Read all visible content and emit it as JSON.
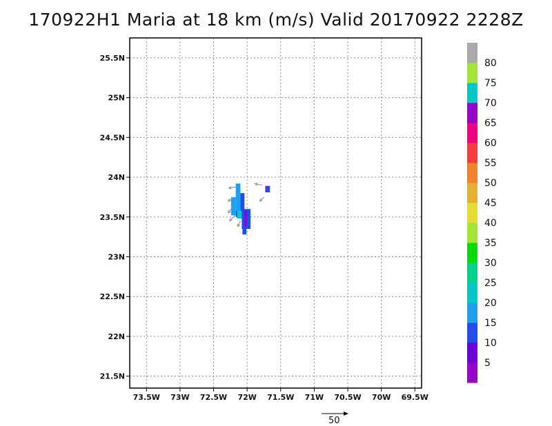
{
  "title": "170922H1 Maria at 18 km (m/s) Valid 20170922 2228Z",
  "map": {
    "lon_range": [
      -73.75,
      -69.4
    ],
    "lat_range": [
      21.35,
      25.75
    ],
    "lon_ticks": [
      {
        "value": -73.5,
        "label": "73.5W"
      },
      {
        "value": -73.0,
        "label": "73W"
      },
      {
        "value": -72.5,
        "label": "72.5W"
      },
      {
        "value": -72.0,
        "label": "72W"
      },
      {
        "value": -71.5,
        "label": "71.5W"
      },
      {
        "value": -71.0,
        "label": "71W"
      },
      {
        "value": -70.5,
        "label": "70.5W"
      },
      {
        "value": -70.0,
        "label": "70W"
      },
      {
        "value": -69.5,
        "label": "69.5W"
      }
    ],
    "lat_ticks": [
      {
        "value": 21.5,
        "label": "21.5N"
      },
      {
        "value": 22.0,
        "label": "22N"
      },
      {
        "value": 22.5,
        "label": "22.5N"
      },
      {
        "value": 23.0,
        "label": "23N"
      },
      {
        "value": 23.5,
        "label": "23.5N"
      },
      {
        "value": 24.0,
        "label": "24N"
      },
      {
        "value": 24.5,
        "label": "24.5N"
      },
      {
        "value": 25.0,
        "label": "25N"
      },
      {
        "value": 25.5,
        "label": "25.5N"
      }
    ],
    "grid": "dotted",
    "wind_cells": [
      {
        "lon0": -72.17,
        "lon1": -72.1,
        "lat0": 23.58,
        "lat1": 23.92,
        "color": "#1ea0f0"
      },
      {
        "lon0": -72.17,
        "lon1": -72.1,
        "lat0": 23.5,
        "lat1": 23.58,
        "color": "#1e4ef0"
      },
      {
        "lon0": -72.24,
        "lon1": -72.17,
        "lat0": 23.52,
        "lat1": 23.75,
        "color": "#1ea0f0"
      },
      {
        "lon0": -72.1,
        "lon1": -72.04,
        "lat0": 23.55,
        "lat1": 23.8,
        "color": "#1e4ef0"
      },
      {
        "lon0": -72.15,
        "lon1": -72.05,
        "lat0": 23.48,
        "lat1": 23.58,
        "color": "#00c8c8"
      },
      {
        "lon0": -72.08,
        "lon1": -71.95,
        "lat0": 23.35,
        "lat1": 23.6,
        "color": "#1e4ef0"
      },
      {
        "lon0": -72.07,
        "lon1": -72.01,
        "lat0": 23.28,
        "lat1": 23.4,
        "color": "#1e4ef0"
      },
      {
        "lon0": -72.04,
        "lon1": -72.0,
        "lat0": 23.38,
        "lat1": 23.58,
        "color": "#9600c8"
      },
      {
        "lon0": -71.71,
        "lon1": -71.66,
        "lat0": 23.81,
        "lat1": 23.89,
        "color": "#1e4ef0"
      },
      {
        "lon0": -71.73,
        "lon1": -71.71,
        "lat0": 23.81,
        "lat1": 23.89,
        "color": "#9600c8"
      }
    ],
    "wind_vectors": [
      {
        "lon": -72.15,
        "lat": 23.88,
        "u": -12,
        "v": -2
      },
      {
        "lon": -72.2,
        "lat": 23.75,
        "u": -8,
        "v": -6
      },
      {
        "lon": -72.22,
        "lat": 23.62,
        "u": -6,
        "v": -8
      },
      {
        "lon": -72.18,
        "lat": 23.52,
        "u": -8,
        "v": -8
      },
      {
        "lon": -72.1,
        "lat": 23.45,
        "u": -4,
        "v": -8
      },
      {
        "lon": -71.78,
        "lat": 23.9,
        "u": -10,
        "v": 2
      },
      {
        "lon": -71.75,
        "lat": 23.75,
        "u": -6,
        "v": -6
      }
    ]
  },
  "colorbar": {
    "colors": [
      "#9600c8",
      "#6e00dc",
      "#1e4ef0",
      "#1ea0f0",
      "#00c8c8",
      "#00d28c",
      "#00dc00",
      "#a0e632",
      "#e6dc32",
      "#e6af2d",
      "#f08228",
      "#fa3c3c",
      "#f00082",
      "#9600c8",
      "#00c8c8",
      "#a0e632",
      "#aaaaaa"
    ],
    "labels": [
      "5",
      "10",
      "15",
      "20",
      "25",
      "30",
      "35",
      "40",
      "45",
      "50",
      "55",
      "60",
      "65",
      "70",
      "75",
      "80"
    ]
  },
  "reference_vector": {
    "label": "50"
  }
}
